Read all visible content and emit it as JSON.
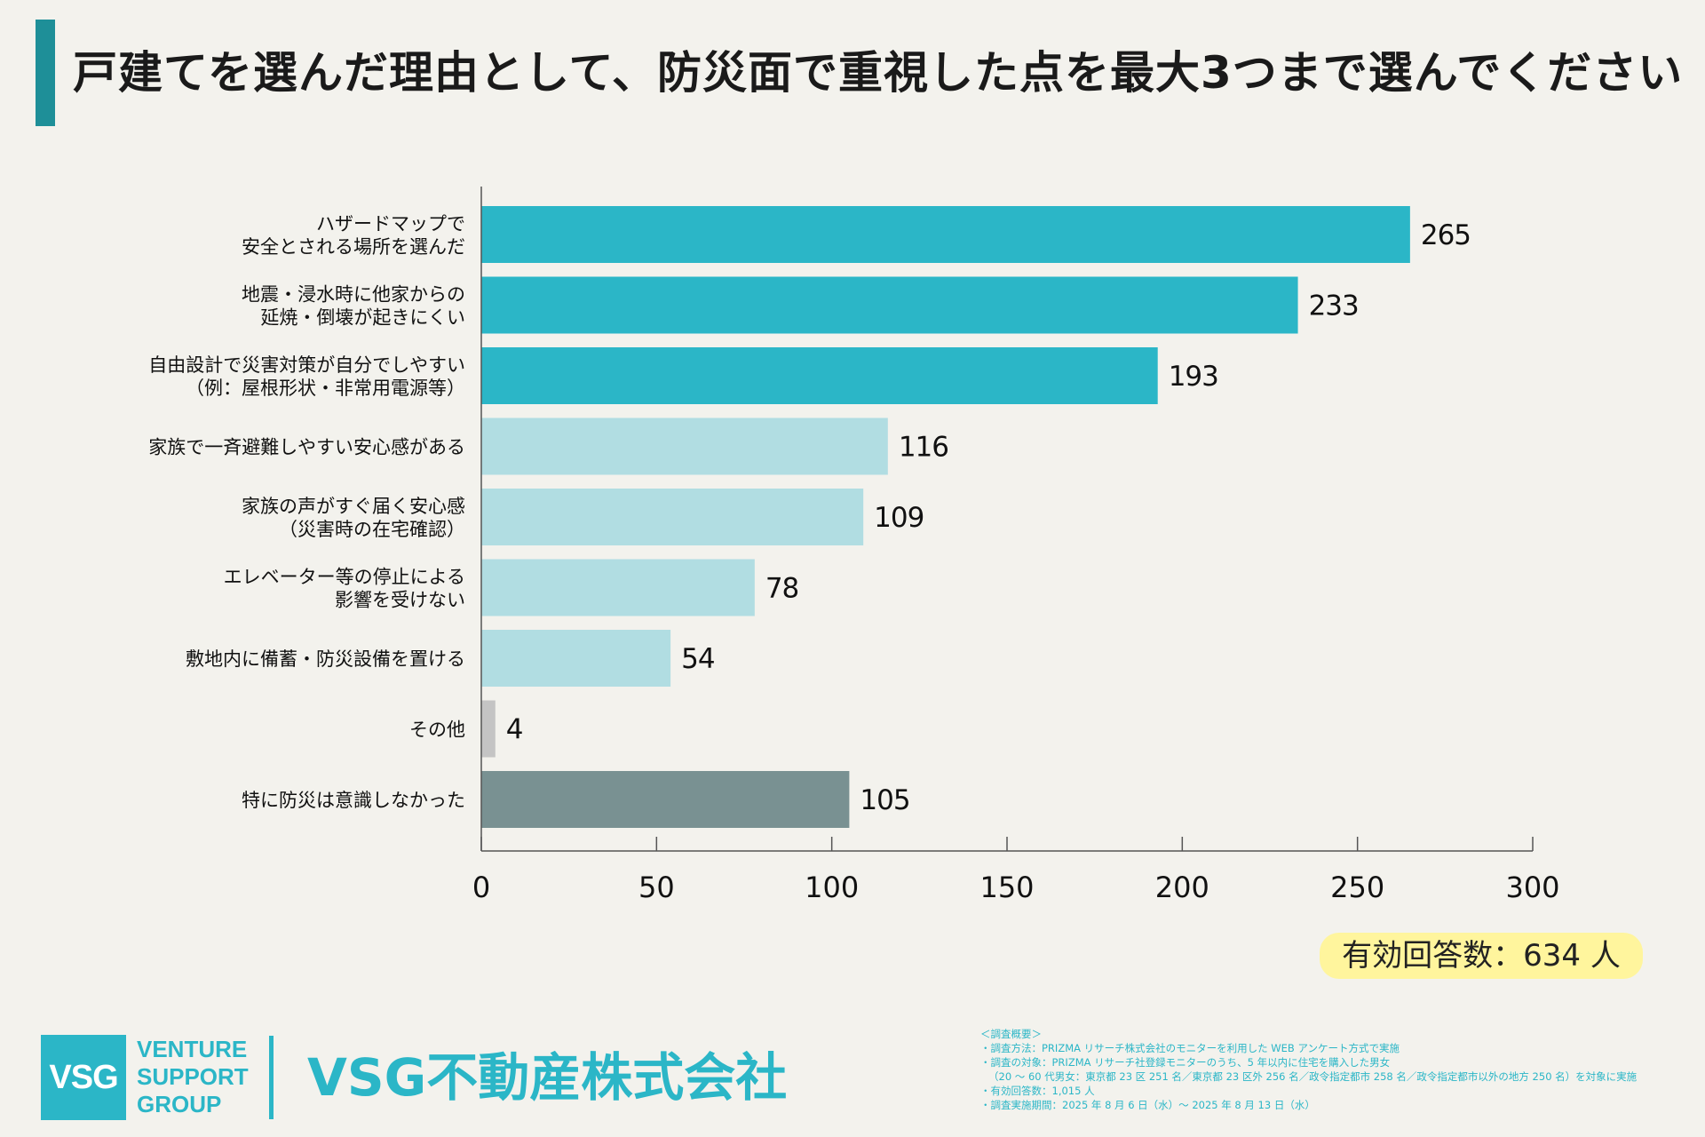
{
  "title": "戸建てを選んだ理由として、防災面で重視した点を最大3つまで選んでください",
  "chart_data": {
    "type": "bar",
    "orientation": "horizontal",
    "title": "戸建てを選んだ理由として、防災面で重視した点を最大3つまで選んでください",
    "categories": [
      [
        "ハザードマップで",
        "安全とされる場所を選んだ"
      ],
      [
        "地震・浸水時に他家からの",
        "延焼・倒壊が起きにくい"
      ],
      [
        "自由設計で災害対策が自分でしやすい",
        "（例：屋根形状・非常用電源等）"
      ],
      [
        "家族で一斉避難しやすい安心感がある"
      ],
      [
        "家族の声がすぐ届く安心感",
        "（災害時の在宅確認）"
      ],
      [
        "エレベーター等の停止による",
        "影響を受けない"
      ],
      [
        "敷地内に備蓄・防災設備を置ける"
      ],
      [
        "その他"
      ],
      [
        "特に防災は意識しなかった"
      ]
    ],
    "values": [
      265,
      233,
      193,
      116,
      109,
      78,
      54,
      4,
      105
    ],
    "colors": [
      "#2bb6c7",
      "#2bb6c7",
      "#2bb6c7",
      "#b1dde2",
      "#b1dde2",
      "#b1dde2",
      "#b1dde2",
      "#c4c4c4",
      "#799192"
    ],
    "xlim": [
      0,
      300
    ],
    "xticks": [
      0,
      50,
      100,
      150,
      200,
      250,
      300
    ],
    "xlabel": "",
    "ylabel": "",
    "grid": false,
    "legend": "none"
  },
  "respondents": "有効回答数：634 人",
  "logo": {
    "mark": "VSG",
    "line1": "VENTURE",
    "line2": "SUPPORT",
    "line3": "GROUP",
    "company": "VSG不動産株式会社"
  },
  "notes": {
    "heading": "＜調査概要＞",
    "method": "・調査方法：PRIZMA リサーチ株式会社のモニターを利用した WEB アンケート方式で実施",
    "target": "・調査の対象：PRIZMA リサーチ社登録モニターのうち、5 年以内に住宅を購入した男女",
    "target_detail": "（20 ～ 60 代男女：東京都 23 区 251 名／東京都 23 区外 256 名／政令指定都市 258 名／政令指定都市以外の地方 250 名）を対象に実施",
    "valid": "・有効回答数：1,015 人",
    "period": "・調査実施期間：2025 年 8 月 6 日（水）～ 2025 年 8 月 13 日（水）"
  },
  "colors": {
    "accent": "#1e8f98",
    "brand": "#2bb6c7",
    "highlight": "#fff59d",
    "background": "#f3f2ed"
  }
}
